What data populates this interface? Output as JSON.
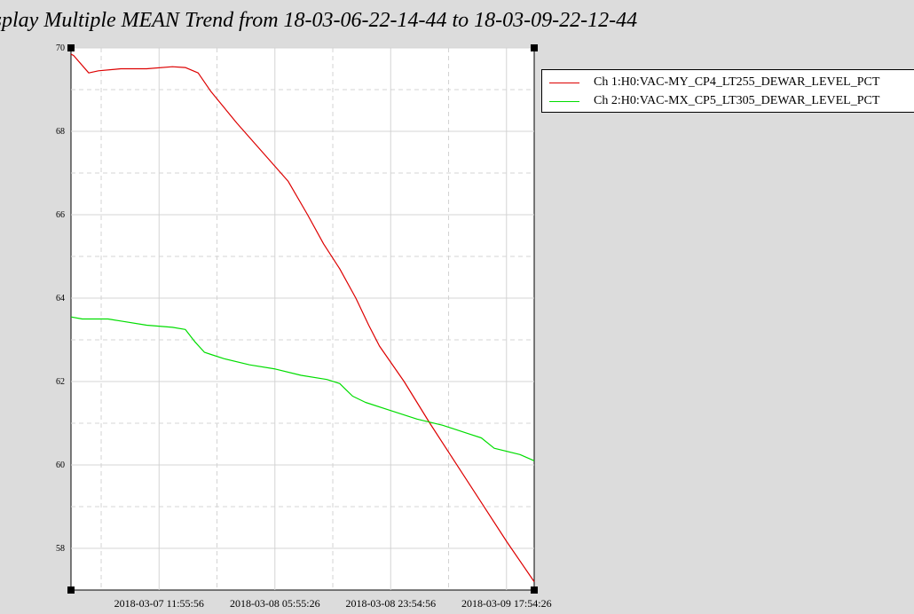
{
  "title": "isplay Multiple MEAN Trend from 18-03-06-22-14-44 to 18-03-09-22-12-44",
  "chart_data": {
    "type": "line",
    "title": "isplay Multiple MEAN Trend from 18-03-06-22-14-44 to 18-03-09-22-12-44",
    "xlabel": "",
    "ylabel": "",
    "grid": true,
    "legend_position": "right",
    "xlim": [
      "2018-03-06 22:14:44",
      "2018-03-09 22:12:44"
    ],
    "ylim": [
      57,
      70
    ],
    "y_ticks": [
      58,
      60,
      62,
      64,
      66,
      68,
      70
    ],
    "x_ticks": [
      "2018-03-07 11:55:56",
      "2018-03-08 05:55:26",
      "2018-03-08 23:54:56",
      "2018-03-09 17:54:26"
    ],
    "series": [
      {
        "name": "Ch 1:H0:VAC-MY_CP4_LT255_DEWAR_LEVEL_PCT",
        "color": "#dd0000",
        "x": [
          "2018-03-06 22:14:44",
          "2018-03-06 22:39:00",
          "2018-03-07 01:00:00",
          "2018-03-07 02:30:00",
          "2018-03-07 06:00:00",
          "2018-03-07 10:00:00",
          "2018-03-07 14:00:00",
          "2018-03-07 16:00:00",
          "2018-03-07 18:00:00",
          "2018-03-07 20:00:00",
          "2018-03-08 00:00:00",
          "2018-03-08 04:00:00",
          "2018-03-08 08:00:00",
          "2018-03-08 11:00:00",
          "2018-03-08 13:30:00",
          "2018-03-08 16:00:00",
          "2018-03-08 18:30:00",
          "2018-03-08 20:30:00",
          "2018-03-08 22:10:00",
          "2018-03-09 02:00:00",
          "2018-03-09 06:00:00",
          "2018-03-09 10:00:00",
          "2018-03-09 14:00:00",
          "2018-03-09 18:00:00",
          "2018-03-09 22:12:44"
        ],
        "values": [
          69.85,
          69.82,
          69.4,
          69.45,
          69.5,
          69.5,
          69.55,
          69.53,
          69.4,
          68.95,
          68.2,
          67.5,
          66.8,
          66.0,
          65.3,
          64.7,
          64.0,
          63.35,
          62.85,
          62.0,
          61.0,
          60.05,
          59.1,
          58.15,
          57.2
        ]
      },
      {
        "name": "Ch 2:H0:VAC-MX_CP5_LT305_DEWAR_LEVEL_PCT",
        "color": "#00dd00",
        "x": [
          "2018-03-06 22:14:44",
          "2018-03-07 00:00:00",
          "2018-03-07 04:00:00",
          "2018-03-07 06:00:00",
          "2018-03-07 10:00:00",
          "2018-03-07 14:00:00",
          "2018-03-07 16:00:00",
          "2018-03-07 17:30:00",
          "2018-03-07 19:00:00",
          "2018-03-07 20:00:00",
          "2018-03-07 22:00:00",
          "2018-03-08 02:00:00",
          "2018-03-08 06:00:00",
          "2018-03-08 10:00:00",
          "2018-03-08 14:00:00",
          "2018-03-08 16:00:00",
          "2018-03-08 17:00:00",
          "2018-03-08 18:00:00",
          "2018-03-08 20:00:00",
          "2018-03-09 00:00:00",
          "2018-03-09 04:00:00",
          "2018-03-09 08:00:00",
          "2018-03-09 12:00:00",
          "2018-03-09 14:00:00",
          "2018-03-09 16:00:00",
          "2018-03-09 20:00:00",
          "2018-03-09 22:12:44"
        ],
        "values": [
          63.55,
          63.5,
          63.5,
          63.45,
          63.35,
          63.3,
          63.25,
          62.95,
          62.7,
          62.65,
          62.55,
          62.4,
          62.3,
          62.15,
          62.05,
          61.95,
          61.8,
          61.65,
          61.5,
          61.3,
          61.1,
          60.95,
          60.75,
          60.65,
          60.4,
          60.25,
          60.1
        ]
      }
    ]
  }
}
